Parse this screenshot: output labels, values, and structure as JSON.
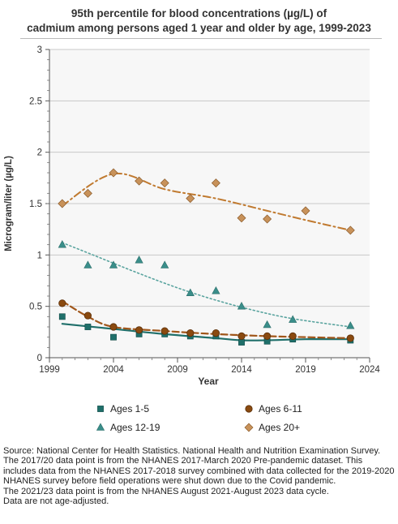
{
  "title_line1": "95th percentile for blood concentrations (µg/L) of",
  "title_line2": "cadmium among persons aged 1 year and older by age, 1999-2023",
  "chart_data": {
    "type": "scatter",
    "xlabel": "Year",
    "ylabel": "Microgram/liter (µg/L)",
    "xlim": [
      1999,
      2024
    ],
    "ylim": [
      0,
      3
    ],
    "xticks": [
      1999,
      2004,
      2009,
      2014,
      2019,
      2024
    ],
    "yticks": [
      0,
      0.5,
      1,
      1.5,
      2,
      2.5,
      3
    ],
    "grid": "horizontal",
    "legend_position": "bottom",
    "series": [
      {
        "name": "Ages 1-5",
        "marker": "square",
        "color": "#1f6f6a",
        "line_color": "#1f6f6a",
        "line_style": "solid",
        "x": [
          2000,
          2002,
          2004,
          2006,
          2008,
          2010,
          2012,
          2014,
          2016,
          2018,
          2022.5
        ],
        "y": [
          0.4,
          0.3,
          0.2,
          0.23,
          0.23,
          0.21,
          0.21,
          0.15,
          0.16,
          0.18,
          0.17
        ],
        "trend_x": [
          2000,
          2004,
          2008,
          2012,
          2014,
          2016,
          2019,
          2022.5
        ],
        "trend_y": [
          0.33,
          0.28,
          0.23,
          0.19,
          0.17,
          0.17,
          0.18,
          0.18
        ]
      },
      {
        "name": "Ages 6-11",
        "marker": "circle",
        "color": "#8a4a10",
        "line_color": "#a0561a",
        "line_style": "dashed",
        "x": [
          2000,
          2002,
          2004,
          2006,
          2008,
          2010,
          2012,
          2014,
          2016,
          2018,
          2022.5
        ],
        "y": [
          0.53,
          0.41,
          0.3,
          0.27,
          0.26,
          0.24,
          0.24,
          0.21,
          0.21,
          0.21,
          0.19
        ],
        "trend_x": [
          2000,
          2002,
          2004,
          2008,
          2012,
          2016,
          2019,
          2022.5
        ],
        "trend_y": [
          0.55,
          0.4,
          0.3,
          0.26,
          0.23,
          0.21,
          0.2,
          0.19
        ]
      },
      {
        "name": "Ages 12-19",
        "marker": "triangle",
        "color": "#3a8e8a",
        "line_color": "#5aa49f",
        "line_style": "dotted",
        "x": [
          2000,
          2002,
          2004,
          2006,
          2008,
          2010,
          2012,
          2014,
          2016,
          2018,
          2022.5
        ],
        "y": [
          1.1,
          0.9,
          0.9,
          0.95,
          0.9,
          0.63,
          0.65,
          0.5,
          0.32,
          0.37,
          0.31
        ],
        "trend_x": [
          2000,
          2003,
          2006,
          2009,
          2012,
          2015,
          2018,
          2022.5
        ],
        "trend_y": [
          1.12,
          0.97,
          0.82,
          0.68,
          0.56,
          0.46,
          0.38,
          0.3
        ]
      },
      {
        "name": "Ages 20+",
        "marker": "diamond",
        "color": "#c8925a",
        "line_color": "#c07a30",
        "line_style": "dashdot",
        "x": [
          2000,
          2002,
          2004,
          2006,
          2008,
          2010,
          2012,
          2014,
          2016,
          2019,
          2022.5
        ],
        "y": [
          1.5,
          1.6,
          1.8,
          1.72,
          1.7,
          1.55,
          1.7,
          1.36,
          1.35,
          1.43,
          1.24
        ],
        "trend_x": [
          2000,
          2004,
          2008,
          2012,
          2016,
          2019,
          2022.5
        ],
        "trend_y": [
          1.48,
          1.79,
          1.64,
          1.55,
          1.43,
          1.34,
          1.24
        ]
      }
    ]
  },
  "source_lines": [
    "Source: National Center for Health Statistics. National Health and Nutrition Examination Survey.",
    "The 2017/20 data point is from the NHANES 2017-March 2020 Pre-pandemic dataset. This includes data from the NHANES 2017-2018 survey combined with data collected for the 2019-2020 NHANES survey before field operations were shut down due to the Covid pandemic.",
    "The 2021/23 data point is from the NHANES August 2021-August 2023 data cycle.",
    "Data are not age-adjusted."
  ]
}
